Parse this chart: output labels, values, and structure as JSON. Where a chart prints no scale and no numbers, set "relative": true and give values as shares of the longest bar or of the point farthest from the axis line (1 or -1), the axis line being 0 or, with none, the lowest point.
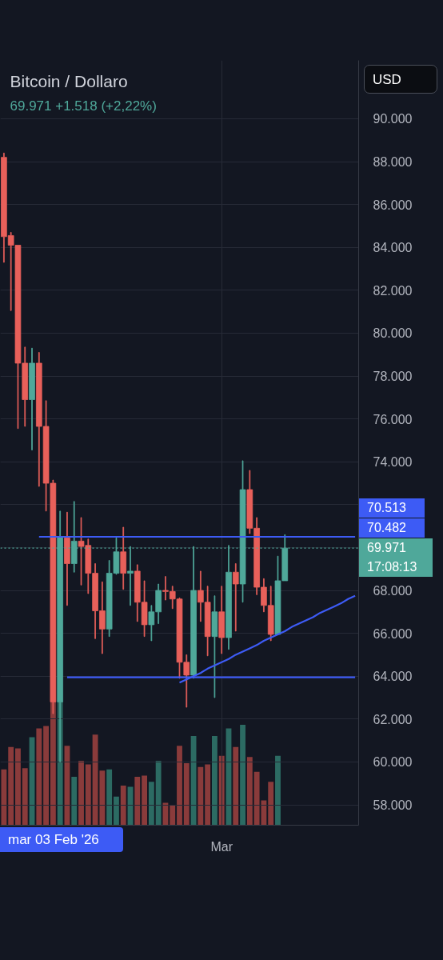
{
  "chart_data": [
    {
      "type": "candlestick",
      "title": "Bitcoin / Dollaro",
      "subtitle": "69.971 +1.518 (+2,22%)",
      "ylabel": "USD",
      "categories": [
        null,
        null,
        null,
        null,
        null,
        null,
        null,
        null,
        null,
        null,
        null,
        null,
        null,
        null,
        null,
        null,
        null,
        null,
        null,
        null,
        null,
        null,
        null,
        null,
        null,
        null,
        null,
        null,
        null,
        null,
        null,
        "Mar",
        null,
        null,
        null,
        null,
        null,
        null,
        null,
        null,
        null,
        null,
        null,
        null,
        null,
        null,
        null,
        null,
        null,
        null,
        null
      ],
      "ohlc": [
        [
          88200,
          88400,
          83300,
          84500
        ],
        [
          84550,
          84700,
          81050,
          84100
        ],
        [
          84100,
          84100,
          75550,
          78600
        ],
        [
          78600,
          79350,
          75650,
          76900
        ],
        [
          76900,
          79300,
          74550,
          78600
        ],
        [
          78600,
          79100,
          72850,
          75650
        ],
        [
          75650,
          76850,
          71700,
          73000
        ],
        [
          73000,
          73150,
          62250,
          62800
        ],
        [
          62800,
          71700,
          60000,
          70500
        ],
        [
          70450,
          71650,
          67300,
          69250
        ],
        [
          69250,
          72150,
          68850,
          70300
        ],
        [
          70300,
          71400,
          68250,
          70050
        ],
        [
          70100,
          70400,
          67850,
          68800
        ],
        [
          68800,
          69250,
          65750,
          67050
        ],
        [
          67050,
          68400,
          65050,
          66200
        ],
        [
          66200,
          69400,
          65850,
          68800
        ],
        [
          68800,
          70450,
          68750,
          69800
        ],
        [
          69800,
          70950,
          68050,
          68800
        ],
        [
          68800,
          70050,
          67300,
          68900
        ],
        [
          68900,
          69200,
          66550,
          67450
        ],
        [
          67450,
          68450,
          65850,
          66400
        ],
        [
          66400,
          67300,
          65650,
          67000
        ],
        [
          67000,
          68300,
          66450,
          68000
        ],
        [
          68000,
          68650,
          67550,
          67950
        ],
        [
          67950,
          68200,
          67150,
          67600
        ],
        [
          67600,
          67650,
          63900,
          64650
        ],
        [
          64650,
          65000,
          62550,
          64050
        ],
        [
          64050,
          70050,
          63900,
          68000
        ],
        [
          68000,
          68900,
          66550,
          67450
        ],
        [
          67450,
          68200,
          64950,
          65850
        ],
        [
          65850,
          67750,
          63000,
          67000
        ],
        [
          67000,
          68200,
          65050,
          65800
        ],
        [
          65800,
          70100,
          65250,
          68850
        ],
        [
          68850,
          69250,
          66100,
          68300
        ],
        [
          68300,
          74050,
          67450,
          72700
        ],
        [
          72700,
          73600,
          70650,
          70900
        ],
        [
          70900,
          71400,
          67800,
          68150
        ],
        [
          68150,
          68550,
          67000,
          67300
        ],
        [
          67300,
          68200,
          65650,
          65950
        ],
        [
          65950,
          69600,
          65950,
          68450
        ],
        [
          68450,
          70600,
          68450,
          69971
        ],
        null,
        null,
        null,
        null,
        null,
        null,
        null,
        null,
        null,
        null
      ],
      "colors": [
        "#e8605a",
        "#e8605a",
        "#e8605a",
        "#e8605a",
        "#4fa89a",
        "#e8605a",
        "#e8605a",
        "#e8605a",
        "#4fa89a",
        "#e8605a",
        "#4fa89a",
        "#e8605a",
        "#e8605a",
        "#e8605a",
        "#e8605a",
        "#4fa89a",
        "#4fa89a",
        "#e8605a",
        "#4fa89a",
        "#e8605a",
        "#e8605a",
        "#4fa89a",
        "#4fa89a",
        "#e8605a",
        "#e8605a",
        "#e8605a",
        "#e8605a",
        "#4fa89a",
        "#e8605a",
        "#e8605a",
        "#4fa89a",
        "#e8605a",
        "#4fa89a",
        "#e8605a",
        "#4fa89a",
        "#e8605a",
        "#e8605a",
        "#e8605a",
        "#e8605a",
        "#4fa89a",
        "#4fa89a",
        null,
        null,
        null,
        null,
        null,
        null,
        null,
        null,
        null,
        null
      ],
      "series": [
        {
          "type": "line",
          "color": "#3d5bf5",
          "values": [
            null,
            null,
            null,
            null,
            null,
            70500,
            70500,
            70500,
            70500,
            70500,
            70500,
            70500,
            70500,
            70500,
            70500,
            70500,
            70500,
            70500,
            70500,
            70500,
            70500,
            70500,
            70500,
            70500,
            70500,
            70500,
            70500,
            70500,
            70500,
            70500,
            70500,
            70500,
            70500,
            70500,
            70500,
            70500,
            70500,
            70500,
            70500,
            70500,
            70500,
            70500,
            70500,
            70500,
            70500,
            70500,
            70500,
            70500,
            70500,
            70500,
            70500
          ]
        },
        {
          "type": "line",
          "color": "#3d5bf5",
          "values": [
            null,
            null,
            null,
            null,
            null,
            null,
            null,
            null,
            null,
            63950,
            63950,
            63950,
            63950,
            63950,
            63950,
            63950,
            63950,
            63950,
            63950,
            63950,
            63950,
            63950,
            63950,
            63950,
            63950,
            63950,
            63950,
            63950,
            63950,
            63950,
            63950,
            63950,
            63950,
            63950,
            63950,
            63950,
            63950,
            63950,
            63950,
            63950,
            63950,
            63950,
            63950,
            63950,
            63950,
            63950,
            63950,
            63950,
            63950,
            63950,
            63950
          ]
        },
        {
          "type": "line",
          "color": "#3d5bf5",
          "values": [
            null,
            null,
            null,
            null,
            null,
            null,
            null,
            null,
            null,
            null,
            null,
            null,
            null,
            null,
            null,
            null,
            null,
            null,
            null,
            null,
            null,
            null,
            null,
            null,
            null,
            63700,
            63850,
            64000,
            64150,
            64350,
            64500,
            64650,
            64800,
            65000,
            65150,
            65300,
            65450,
            65650,
            65800,
            65950,
            66100,
            66300,
            66450,
            66600,
            66750,
            66950,
            67100,
            67250,
            67400,
            67600,
            67750
          ]
        }
      ],
      "ref_lines": [
        {
          "axis": "y",
          "value": 69971,
          "label": "69.971",
          "color": "#4fa89a",
          "line_style": "dotted"
        }
      ],
      "annotations": [
        "70.513",
        "70.482",
        "17:08:13",
        "mar 03 Feb '26"
      ],
      "ylim": [
        57050,
        92720
      ],
      "yticks": [
        {
          "value": 58000,
          "label": "58.000"
        },
        {
          "value": 60000,
          "label": "60.000"
        },
        {
          "value": 62000,
          "label": "62.000"
        },
        {
          "value": 64000,
          "label": "64.000"
        },
        {
          "value": 66000,
          "label": "66.000"
        },
        {
          "value": 68000,
          "label": "68.000"
        },
        {
          "value": 70000,
          "label": null
        },
        {
          "value": 72000,
          "label": null
        },
        {
          "value": 74000,
          "label": "74.000"
        },
        {
          "value": 76000,
          "label": "76.000"
        },
        {
          "value": 78000,
          "label": "78.000"
        },
        {
          "value": 80000,
          "label": "80.000"
        },
        {
          "value": 82000,
          "label": "82.000"
        },
        {
          "value": 84000,
          "label": "84.000"
        },
        {
          "value": 86000,
          "label": "86.000"
        },
        {
          "value": 88000,
          "label": "88.000"
        },
        {
          "value": 90000,
          "label": "90.000"
        }
      ],
      "grid": true
    },
    {
      "type": "bar",
      "relative": true,
      "categories": [
        null,
        null,
        null,
        null,
        null,
        null,
        null,
        null,
        null,
        null,
        null,
        null,
        null,
        null,
        null,
        null,
        null,
        null,
        null,
        null,
        null,
        null,
        null,
        null,
        null,
        null,
        null,
        null,
        null,
        null,
        null,
        null,
        null,
        null,
        null,
        null,
        null,
        null,
        null,
        null,
        null,
        null,
        null,
        null,
        null,
        null,
        null,
        null,
        null,
        null,
        null
      ],
      "values": [
        0.45,
        0.63,
        0.62,
        0.46,
        0.71,
        0.78,
        0.8,
        1,
        1,
        0.64,
        0.39,
        0.52,
        0.49,
        0.73,
        0.44,
        0.45,
        0.23,
        0.32,
        0.31,
        0.39,
        0.4,
        0.35,
        0.52,
        0.18,
        0.16,
        0.64,
        0.5,
        0.72,
        0.47,
        0.49,
        0.72,
        0.56,
        0.78,
        0.63,
        0.81,
        0.55,
        0.43,
        0.2,
        0.35,
        0.56,
        null,
        null,
        null,
        null,
        null,
        null,
        null,
        null,
        null,
        null,
        null
      ],
      "colors": [
        "#8a3b3b",
        "#8a3b3b",
        "#8a3b3b",
        "#8a3b3b",
        "#2c6b63",
        "#8a3b3b",
        "#8a3b3b",
        "#8a3b3b",
        "#2c6b63",
        "#8a3b3b",
        "#2c6b63",
        "#8a3b3b",
        "#8a3b3b",
        "#8a3b3b",
        "#8a3b3b",
        "#2c6b63",
        "#2c6b63",
        "#8a3b3b",
        "#2c6b63",
        "#8a3b3b",
        "#8a3b3b",
        "#2c6b63",
        "#2c6b63",
        "#8a3b3b",
        "#8a3b3b",
        "#8a3b3b",
        "#8a3b3b",
        "#2c6b63",
        "#8a3b3b",
        "#8a3b3b",
        "#2c6b63",
        "#8a3b3b",
        "#2c6b63",
        "#8a3b3b",
        "#2c6b63",
        "#8a3b3b",
        "#8a3b3b",
        "#8a3b3b",
        "#8a3b3b",
        "#2c6b63",
        "#2c6b63",
        null,
        null,
        null,
        null,
        null,
        null,
        null,
        null,
        null,
        null
      ]
    }
  ]
}
